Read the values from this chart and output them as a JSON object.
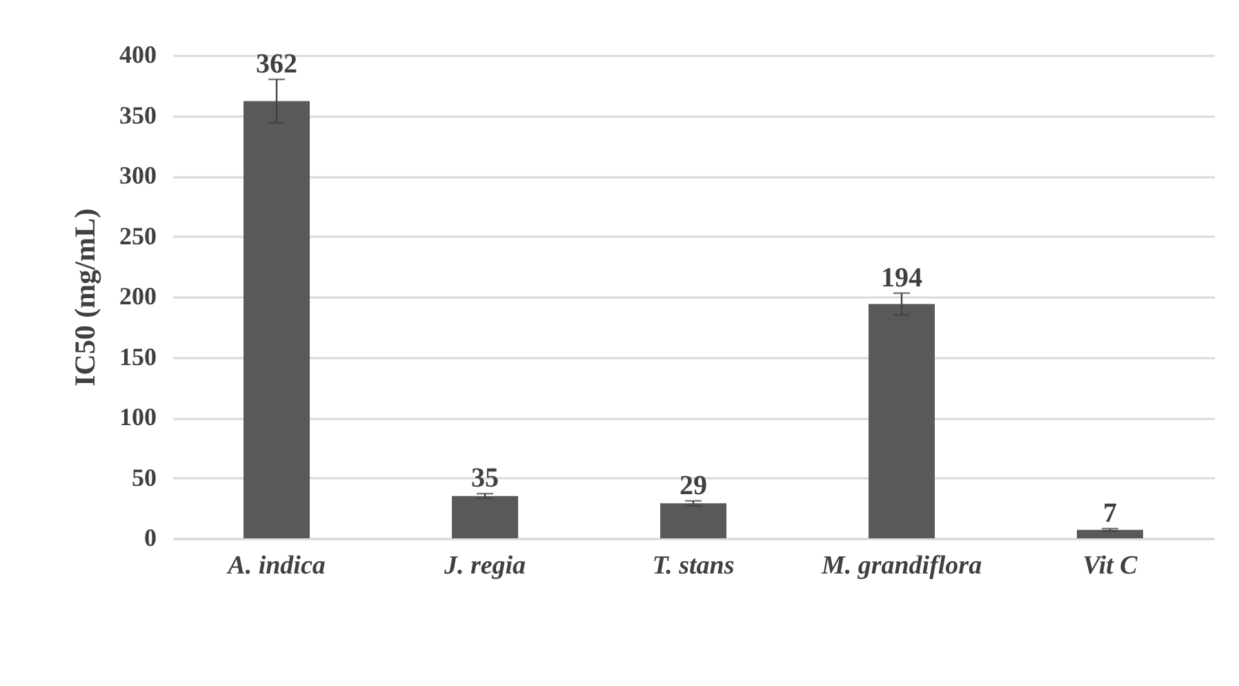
{
  "chart_data": {
    "type": "bar",
    "ylabel": "IC50 (mg/mL)",
    "categories": [
      "A. indica",
      "J. regia",
      "T. stans",
      "M. grandiflora",
      "Vit C"
    ],
    "values": [
      362,
      35,
      29,
      194,
      7
    ],
    "errors": [
      18,
      2,
      2,
      9,
      1
    ],
    "color": "#595959",
    "ylim": [
      0,
      400
    ],
    "yticks": [
      0,
      50,
      100,
      150,
      200,
      250,
      300,
      350,
      400
    ],
    "grid": "y",
    "data_labels": true
  }
}
